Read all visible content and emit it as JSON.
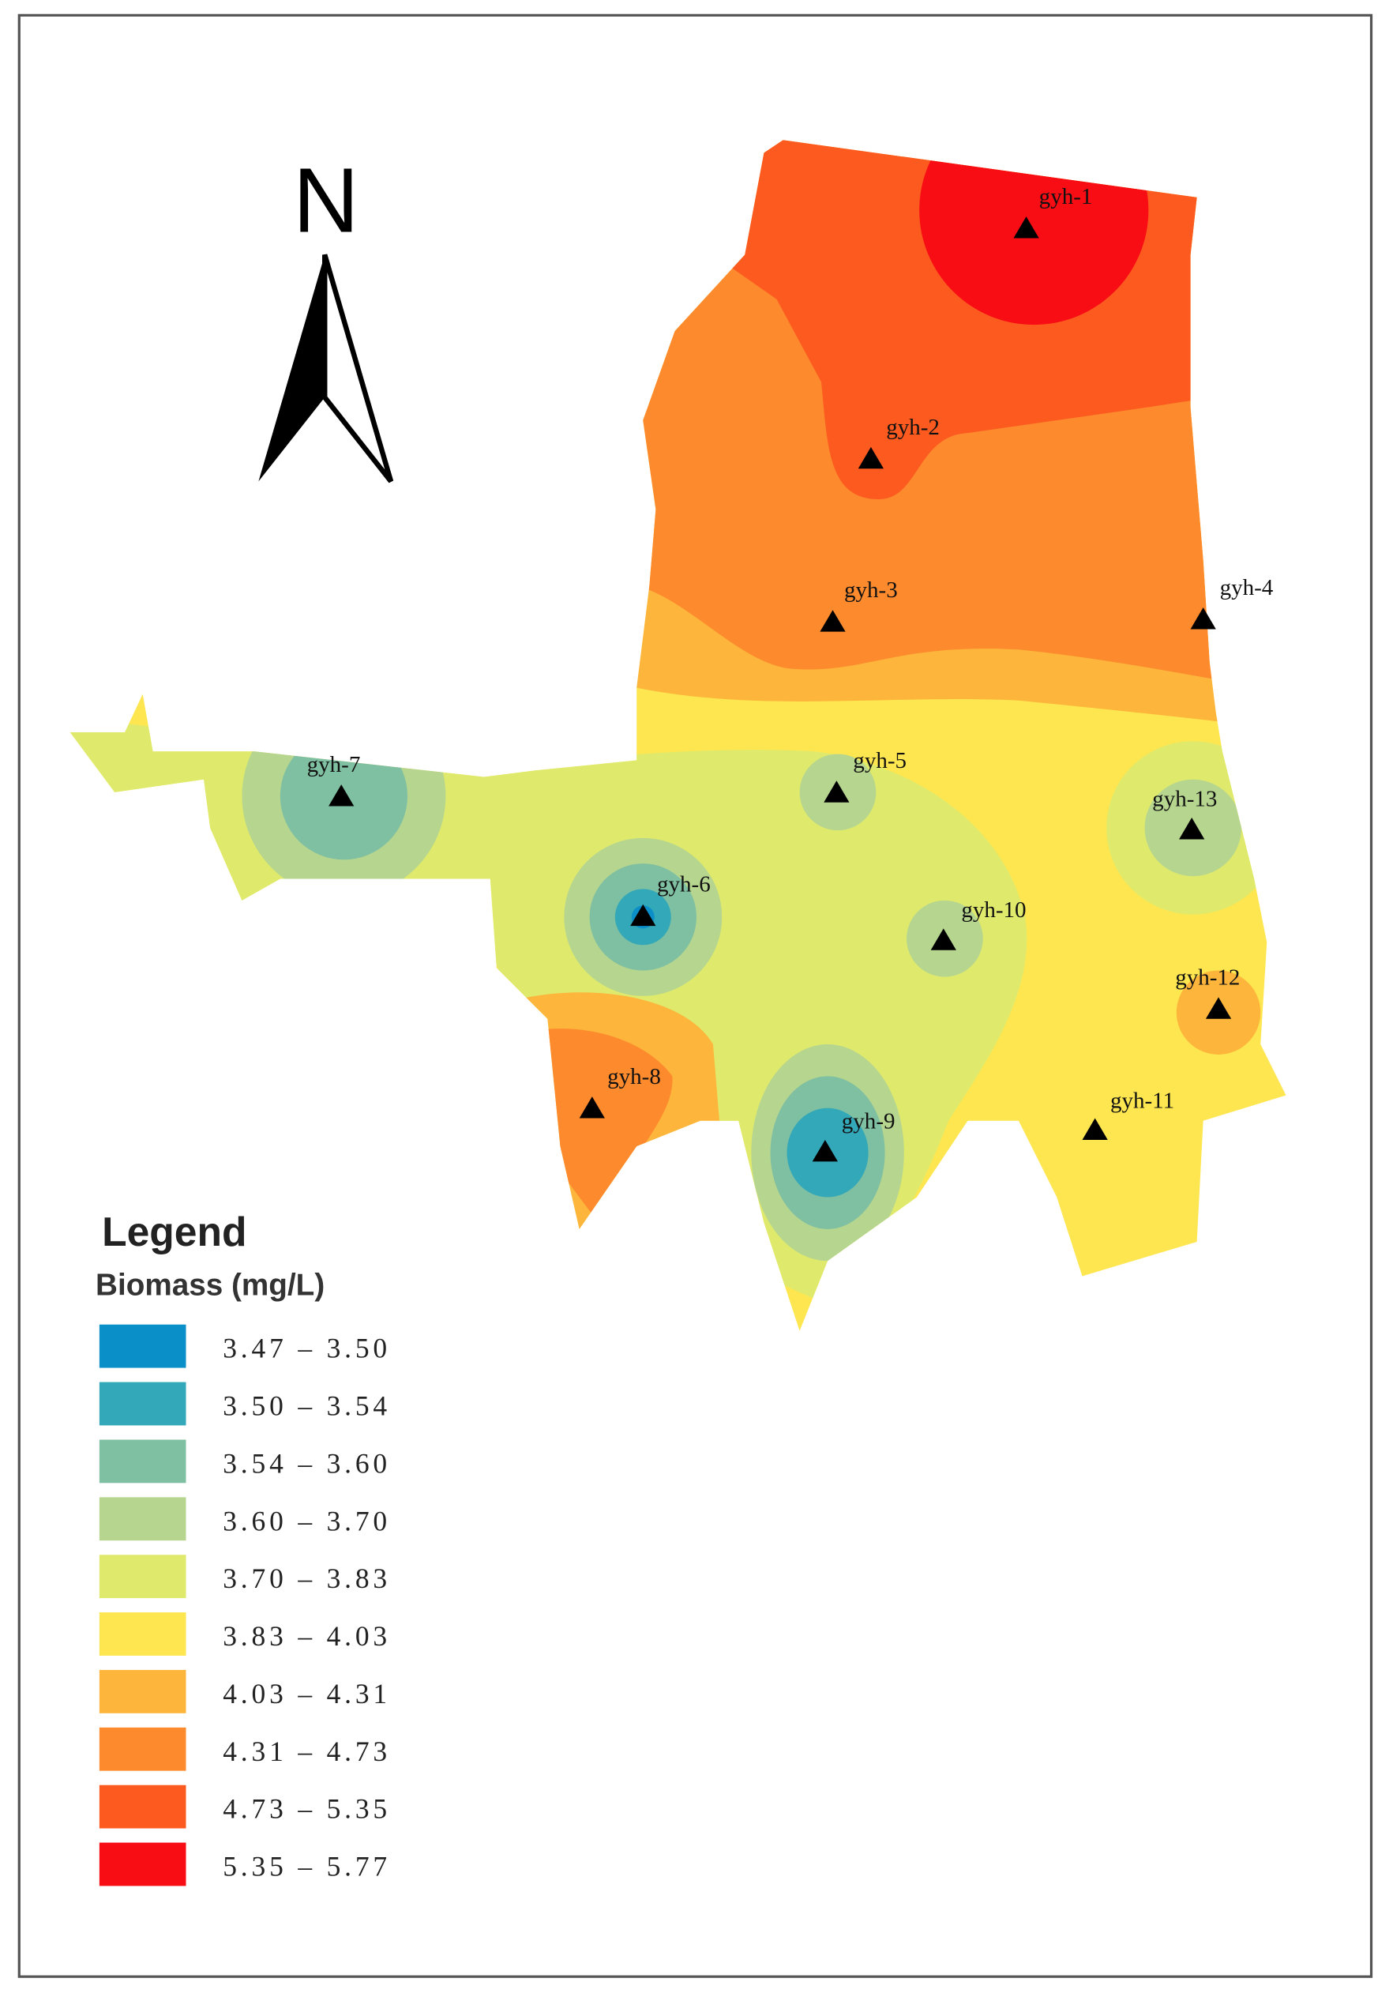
{
  "north": "N",
  "legend": {
    "title": "Legend",
    "subtitle": "Biomass (mg/L)",
    "classes": [
      {
        "label": "3.47 – 3.50",
        "color": "#0b8fc9"
      },
      {
        "label": "3.50 – 3.54",
        "color": "#33a8b8"
      },
      {
        "label": "3.54 – 3.60",
        "color": "#80c0a2"
      },
      {
        "label": "3.60 – 3.70",
        "color": "#b6d58f"
      },
      {
        "label": "3.70 – 3.83",
        "color": "#dfea6c"
      },
      {
        "label": "3.83 – 4.03",
        "color": "#fde64f"
      },
      {
        "label": "4.03 – 4.31",
        "color": "#fdb53c"
      },
      {
        "label": "4.31 – 4.73",
        "color": "#fd8a2d"
      },
      {
        "label": "4.73 – 5.35",
        "color": "#fd5a20"
      },
      {
        "label": "5.35 – 5.77",
        "color": "#f80d14"
      }
    ]
  },
  "stations": [
    "gyh-1",
    "gyh-2",
    "gyh-3",
    "gyh-4",
    "gyh-5",
    "gyh-6",
    "gyh-7",
    "gyh-8",
    "gyh-9",
    "gyh-10",
    "gyh-11",
    "gyh-12",
    "gyh-13"
  ]
}
